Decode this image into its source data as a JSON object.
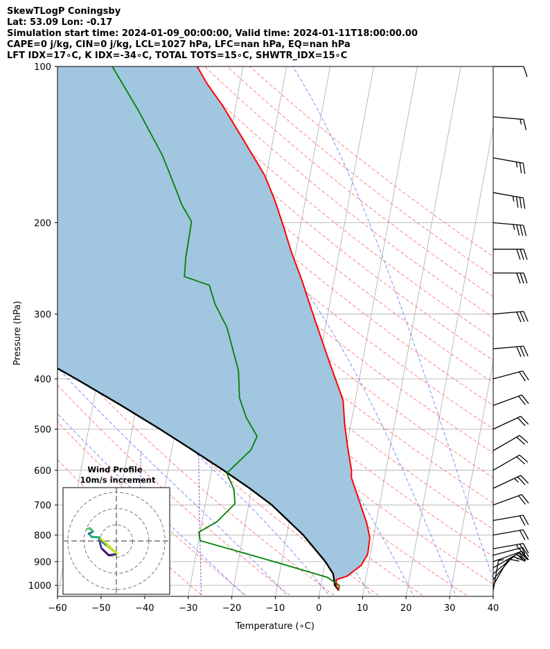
{
  "title_block": {
    "line1": "SkewTLogP Coningsby",
    "line2": "Lat: 53.09   Lon: -0.17",
    "line3": "Simulation start time: 2024-01-09_00:00:00, Valid time: 2024-01-11T18:00:00.00",
    "line4": "CAPE=0 j/kg, CIN=0 j/kg, LCL=1027 hPa, LFC=nan hPa, EQ=nan hPa",
    "line5": "LFT IDX=17∘C, K IDX=-34∘C, TOTAL TOTS=15∘C, SHWTR_IDX=15∘C"
  },
  "chart_data": {
    "type": "line",
    "subtype": "skew-t log-p diagram",
    "xlabel": "Temperature (∘C)",
    "ylabel": "Pressure (hPa)",
    "xlim": [
      -60,
      40
    ],
    "ylim": [
      1050,
      100
    ],
    "y_scale": "log",
    "x_ticks": [
      -60,
      -50,
      -40,
      -30,
      -20,
      -10,
      0,
      10,
      20,
      30,
      40
    ],
    "x_tick_labels": [
      "−60",
      "−50",
      "−40",
      "−30",
      "−20",
      "−10",
      "0",
      "10",
      "20",
      "30",
      "40"
    ],
    "y_ticks": [
      1000,
      900,
      800,
      700,
      600,
      500,
      400,
      300,
      200,
      100
    ],
    "grid": true,
    "colors": {
      "temperature": "#ff0000",
      "dewpoint": "#008000",
      "parcel": "#000000",
      "cape_fill": "#a1c6df",
      "dry_adiabats": "#ff6b6b",
      "moist_adiabats": "#6f7ef5",
      "mixing_ratio": "#9a4fc7",
      "isotherms": "#aaaaaa"
    },
    "series": [
      {
        "role": "temperature",
        "points": [
          [
            4.3,
            1023
          ],
          [
            3.5,
            1000
          ],
          [
            3.3,
            975
          ],
          [
            5.6,
            960
          ],
          [
            8.4,
            915
          ],
          [
            9.4,
            870
          ],
          [
            9.2,
            810
          ],
          [
            7.9,
            760
          ],
          [
            5.3,
            690
          ],
          [
            2.4,
            620
          ],
          [
            2.1,
            600
          ],
          [
            0.2,
            540
          ],
          [
            -1.4,
            490
          ],
          [
            -2.8,
            440
          ],
          [
            -7.3,
            375
          ],
          [
            -12.5,
            310
          ],
          [
            -17.4,
            258
          ],
          [
            -21.2,
            226
          ],
          [
            -23.8,
            204
          ],
          [
            -27.0,
            181
          ],
          [
            -30.4,
            162
          ],
          [
            -36.9,
            138
          ],
          [
            -43.0,
            119
          ],
          [
            -47.5,
            108
          ],
          [
            -50.5,
            100
          ]
        ]
      },
      {
        "role": "dewpoint",
        "points": [
          [
            4.3,
            1023
          ],
          [
            4.2,
            1000
          ],
          [
            1.1,
            965
          ],
          [
            -10.7,
            905
          ],
          [
            -29.6,
            820
          ],
          [
            -30.3,
            790
          ],
          [
            -26.6,
            754
          ],
          [
            -23.2,
            696
          ],
          [
            -24.1,
            652
          ],
          [
            -26.4,
            608
          ],
          [
            -21.8,
            548
          ],
          [
            -21.0,
            516
          ],
          [
            -24.3,
            475
          ],
          [
            -26.7,
            435
          ],
          [
            -28.1,
            385
          ],
          [
            -32.6,
            318
          ],
          [
            -36.3,
            287
          ],
          [
            -38.4,
            264
          ],
          [
            -44.5,
            254
          ],
          [
            -45.0,
            233
          ],
          [
            -45.2,
            199
          ],
          [
            -48.1,
            185
          ],
          [
            -52.4,
            160
          ],
          [
            -54.8,
            148
          ],
          [
            -62.0,
            122
          ],
          [
            -70.0,
            100
          ]
        ]
      },
      {
        "role": "parcel",
        "points": [
          [
            4.3,
            1023
          ],
          [
            3.2,
            1000
          ],
          [
            2.3,
            950
          ],
          [
            0.0,
            900
          ],
          [
            -3.0,
            850
          ],
          [
            -6.2,
            800
          ],
          [
            -10.3,
            750
          ],
          [
            -14.7,
            700
          ],
          [
            -20.5,
            650
          ],
          [
            -27.3,
            600
          ],
          [
            -35.0,
            550
          ],
          [
            -43.6,
            500
          ],
          [
            -53.5,
            450
          ],
          [
            -65.0,
            400
          ],
          [
            -78.5,
            350
          ],
          [
            -94.0,
            300
          ],
          [
            -112.0,
            250
          ],
          [
            -132.0,
            200
          ],
          [
            -155.0,
            150
          ],
          [
            -183.0,
            100
          ]
        ]
      }
    ],
    "wind_barbs": {
      "pressures": [
        1023,
        1000,
        975,
        950,
        925,
        900,
        875,
        850,
        800,
        750,
        700,
        650,
        600,
        550,
        500,
        450,
        400,
        350,
        300,
        250,
        225,
        200,
        175,
        150,
        125,
        100
      ],
      "speeds_kt": [
        7,
        10,
        14,
        18,
        20,
        23,
        23,
        25,
        22,
        20,
        24,
        25,
        22,
        20,
        22,
        22,
        22,
        30,
        30,
        32,
        32,
        35,
        38,
        25,
        15,
        10
      ],
      "directions_deg": [
        10,
        30,
        40,
        50,
        60,
        70,
        75,
        80,
        80,
        80,
        70,
        65,
        60,
        60,
        65,
        70,
        75,
        85,
        85,
        90,
        90,
        95,
        100,
        100,
        95,
        90
      ]
    },
    "hodograph": {
      "title": "Wind Profile",
      "subtitle": "10m/s increment",
      "points": [
        [
          -0.2,
          -4.0
        ],
        [
          -2.3,
          -4.3
        ],
        [
          -4.5,
          -2.2
        ],
        [
          -5.2,
          0.5
        ],
        [
          -2.8,
          -1.5
        ],
        [
          0.2,
          -3.8
        ],
        [
          -5.1,
          1.1
        ],
        [
          -7.4,
          1.2
        ],
        [
          -8.3,
          2.2
        ],
        [
          -7.0,
          2.8
        ],
        [
          -8.0,
          3.9
        ],
        [
          -8.8,
          3.5
        ]
      ],
      "colors": [
        "#3b0f70",
        "#3b0f70",
        "#414487",
        "#2a788e",
        "#9fda3a",
        "#c8e020",
        "#22a884",
        "#22a884",
        "#2a788e",
        "#35b779",
        "#5ec962",
        "#5ec962"
      ]
    }
  }
}
